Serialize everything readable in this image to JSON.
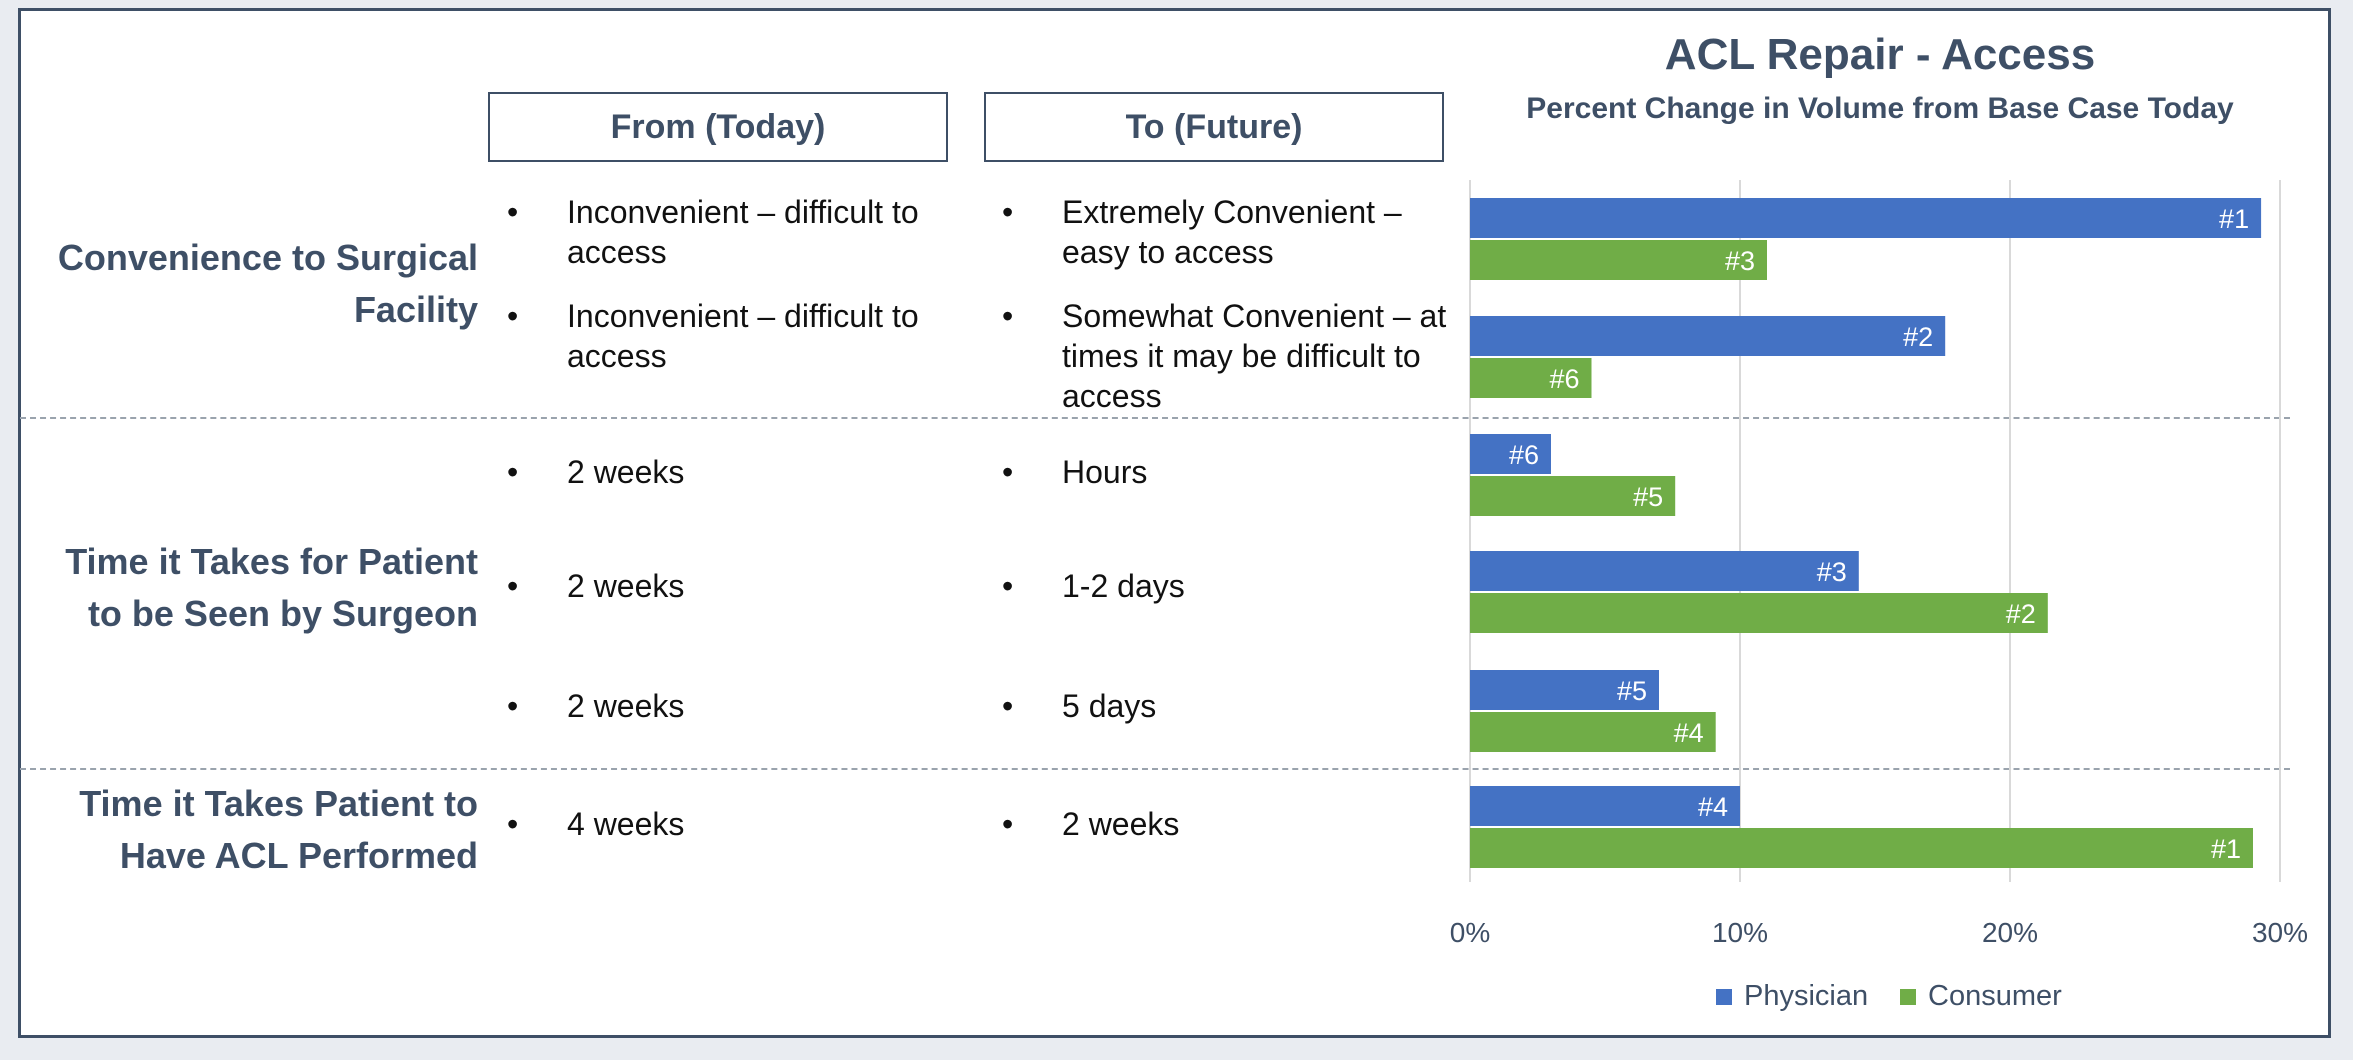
{
  "headers": {
    "from": "From (Today)",
    "to": "To (Future)"
  },
  "factors": [
    {
      "label": "Convenience to Surgical Facility"
    },
    {
      "label": "Time it Takes for Patient to be Seen by Surgeon"
    },
    {
      "label": "Time it Takes Patient to Have ACL Performed"
    }
  ],
  "rows": [
    {
      "from": "Inconvenient – difficult to access",
      "to": "Extremely Convenient – easy to access"
    },
    {
      "from": "Inconvenient – difficult to access",
      "to": "Somewhat Convenient – at times it may be difficult to access"
    },
    {
      "from": "2 weeks",
      "to": "Hours"
    },
    {
      "from": "2 weeks",
      "to": "1-2 days"
    },
    {
      "from": "2 weeks",
      "to": "5 days"
    },
    {
      "from": "4 weeks",
      "to": "2 weeks"
    }
  ],
  "bullet": "•",
  "chart_data": {
    "type": "bar",
    "orientation": "horizontal",
    "title": "ACL Repair - Access",
    "subtitle": "Percent Change in Volume from Base Case Today",
    "xlim": [
      0,
      30
    ],
    "xticks": [
      "0%",
      "10%",
      "20%",
      "30%"
    ],
    "grid": true,
    "legend_position": "bottom",
    "series": [
      {
        "name": "Physician",
        "color": "#4472c4",
        "values": [
          29.3,
          17.6,
          3.0,
          14.4,
          7.0,
          10.0
        ],
        "labels": [
          "#1",
          "#2",
          "#6",
          "#3",
          "#5",
          "#4"
        ]
      },
      {
        "name": "Consumer",
        "color": "#70ad47",
        "values": [
          11.0,
          4.5,
          7.6,
          21.4,
          9.1,
          29.0
        ],
        "labels": [
          "#3",
          "#6",
          "#5",
          "#2",
          "#4",
          "#1"
        ]
      }
    ]
  }
}
